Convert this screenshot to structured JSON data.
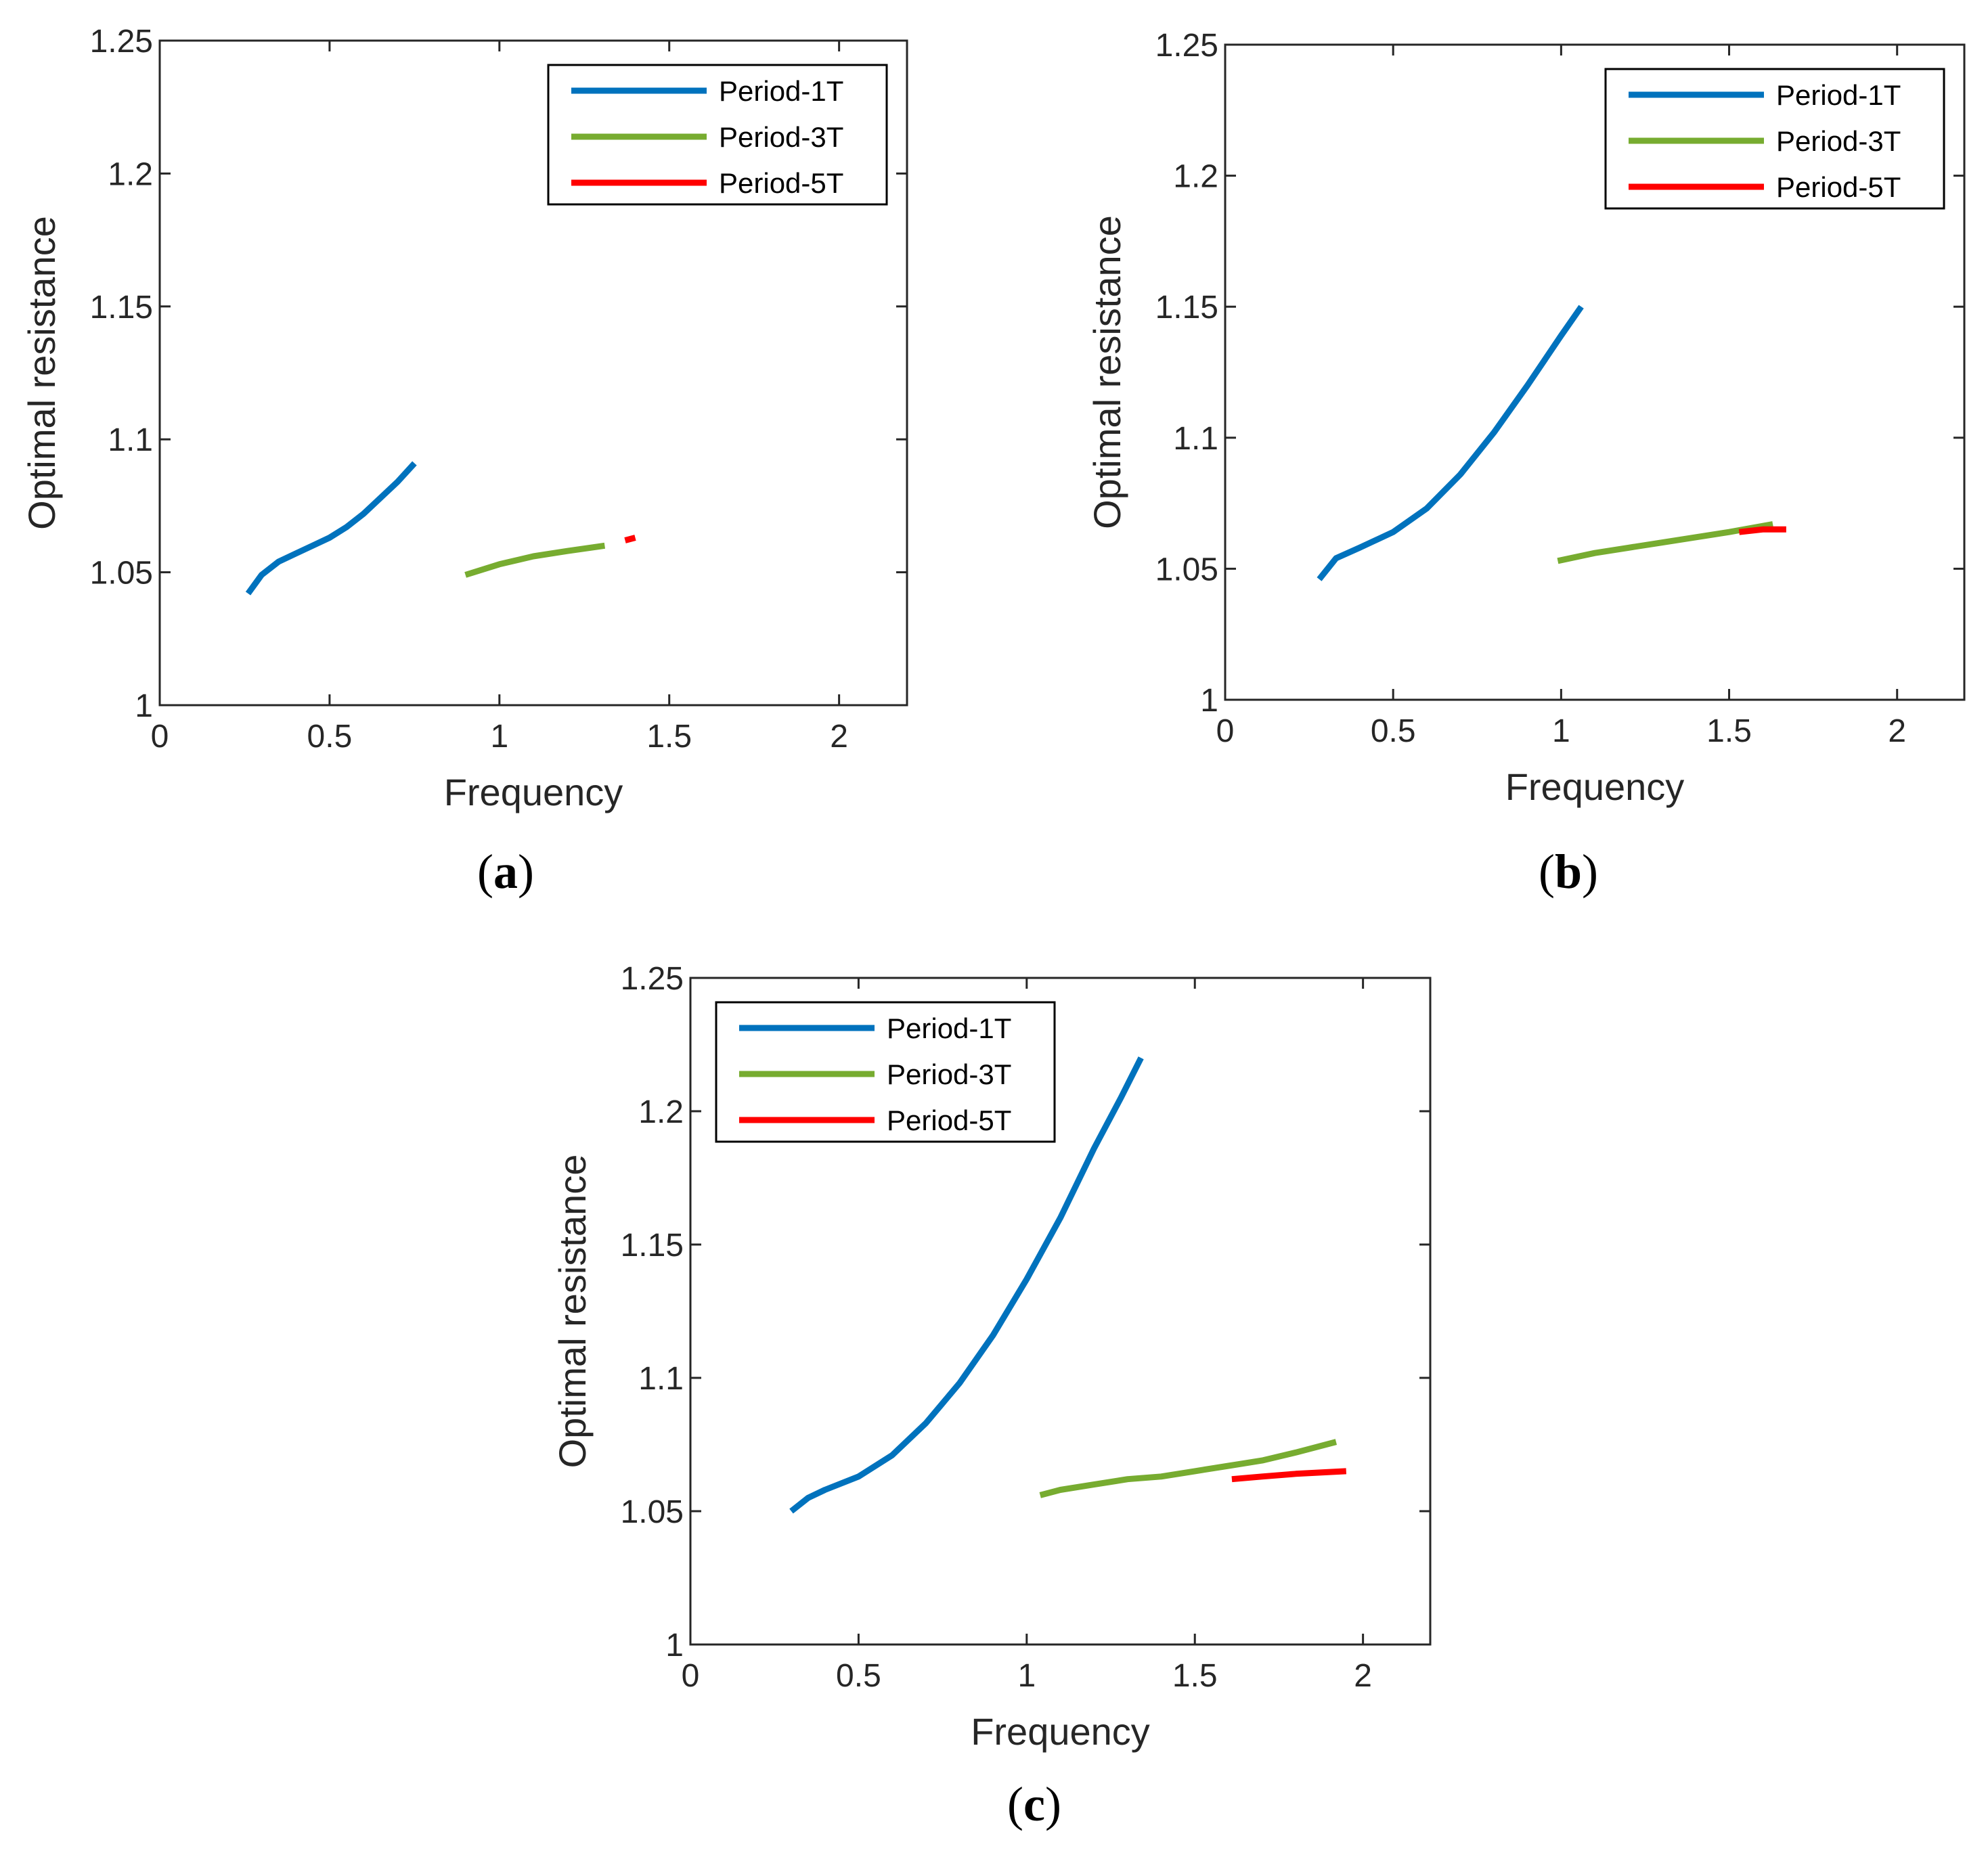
{
  "colors": {
    "period1": "#0072BD",
    "period3": "#77AC30",
    "period5": "#FF0000",
    "axis": "#262626"
  },
  "chart_data": [
    {
      "panel": "a",
      "type": "line",
      "xlabel": "Frequency",
      "ylabel": "Optimal resistance",
      "xlim": [
        0,
        2.2
      ],
      "ylim": [
        1,
        1.25
      ],
      "xticks": [
        0,
        0.5,
        1,
        1.5,
        2
      ],
      "yticks": [
        1,
        1.05,
        1.1,
        1.15,
        1.2,
        1.25
      ],
      "xtick_labels": [
        "0",
        "0.5",
        "1",
        "1.5",
        "2"
      ],
      "ytick_labels": [
        "1",
        "1.05",
        "1.1",
        "1.15",
        "1.2",
        "1.25"
      ],
      "legend_location": "top-right",
      "series": [
        {
          "name": "Period-1T",
          "color_key": "period1",
          "x": [
            0.26,
            0.3,
            0.35,
            0.4,
            0.45,
            0.5,
            0.55,
            0.6,
            0.65,
            0.7,
            0.75
          ],
          "y": [
            1.042,
            1.049,
            1.054,
            1.057,
            1.06,
            1.063,
            1.067,
            1.072,
            1.078,
            1.084,
            1.091
          ]
        },
        {
          "name": "Period-3T",
          "color_key": "period3",
          "x": [
            0.9,
            1.0,
            1.1,
            1.2,
            1.31
          ],
          "y": [
            1.049,
            1.053,
            1.056,
            1.058,
            1.06
          ]
        },
        {
          "name": "Period-5T",
          "color_key": "period5",
          "x": [
            1.37,
            1.4
          ],
          "y": [
            1.062,
            1.063
          ]
        }
      ]
    },
    {
      "panel": "b",
      "type": "line",
      "xlabel": "Frequency",
      "ylabel": "Optimal resistance",
      "xlim": [
        0,
        2.2
      ],
      "ylim": [
        1,
        1.25
      ],
      "xticks": [
        0,
        0.5,
        1,
        1.5,
        2
      ],
      "yticks": [
        1,
        1.05,
        1.1,
        1.15,
        1.2,
        1.25
      ],
      "xtick_labels": [
        "0",
        "0.5",
        "1",
        "1.5",
        "2"
      ],
      "ytick_labels": [
        "1",
        "1.05",
        "1.1",
        "1.15",
        "1.2",
        "1.25"
      ],
      "legend_location": "top-right",
      "series": [
        {
          "name": "Period-1T",
          "color_key": "period1",
          "x": [
            0.28,
            0.33,
            0.4,
            0.5,
            0.6,
            0.7,
            0.8,
            0.9,
            1.0,
            1.06
          ],
          "y": [
            1.046,
            1.054,
            1.058,
            1.064,
            1.073,
            1.086,
            1.102,
            1.12,
            1.139,
            1.15
          ]
        },
        {
          "name": "Period-3T",
          "color_key": "period3",
          "x": [
            0.99,
            1.1,
            1.2,
            1.3,
            1.4,
            1.5,
            1.63
          ],
          "y": [
            1.053,
            1.056,
            1.058,
            1.06,
            1.062,
            1.064,
            1.067
          ]
        },
        {
          "name": "Period-5T",
          "color_key": "period5",
          "x": [
            1.53,
            1.6,
            1.67
          ],
          "y": [
            1.064,
            1.065,
            1.065
          ]
        }
      ]
    },
    {
      "panel": "c",
      "type": "line",
      "xlabel": "Frequency",
      "ylabel": "Optimal resistance",
      "xlim": [
        0,
        2.2
      ],
      "ylim": [
        1,
        1.25
      ],
      "xticks": [
        0,
        0.5,
        1,
        1.5,
        2
      ],
      "yticks": [
        1,
        1.05,
        1.1,
        1.15,
        1.2,
        1.25
      ],
      "xtick_labels": [
        "0",
        "0.5",
        "1",
        "1.5",
        "2"
      ],
      "ytick_labels": [
        "1",
        "1.05",
        "1.1",
        "1.15",
        "1.2",
        "1.25"
      ],
      "legend_location": "top-left",
      "series": [
        {
          "name": "Period-1T",
          "color_key": "period1",
          "x": [
            0.3,
            0.35,
            0.4,
            0.5,
            0.6,
            0.7,
            0.8,
            0.9,
            1.0,
            1.1,
            1.2,
            1.28,
            1.34
          ],
          "y": [
            1.05,
            1.055,
            1.058,
            1.063,
            1.071,
            1.083,
            1.098,
            1.116,
            1.137,
            1.16,
            1.186,
            1.205,
            1.22
          ]
        },
        {
          "name": "Period-3T",
          "color_key": "period3",
          "x": [
            1.04,
            1.1,
            1.2,
            1.3,
            1.4,
            1.5,
            1.6,
            1.7,
            1.8,
            1.92
          ],
          "y": [
            1.056,
            1.058,
            1.06,
            1.062,
            1.063,
            1.065,
            1.067,
            1.069,
            1.072,
            1.076
          ]
        },
        {
          "name": "Period-5T",
          "color_key": "period5",
          "x": [
            1.61,
            1.7,
            1.8,
            1.95
          ],
          "y": [
            1.062,
            1.063,
            1.064,
            1.065
          ]
        }
      ]
    }
  ],
  "panel_labels": {
    "a": {
      "open": "(",
      "letter": "a",
      "close": ")"
    },
    "b": {
      "open": "(",
      "letter": "b",
      "close": ")"
    },
    "c": {
      "open": "(",
      "letter": "c",
      "close": ")"
    }
  }
}
